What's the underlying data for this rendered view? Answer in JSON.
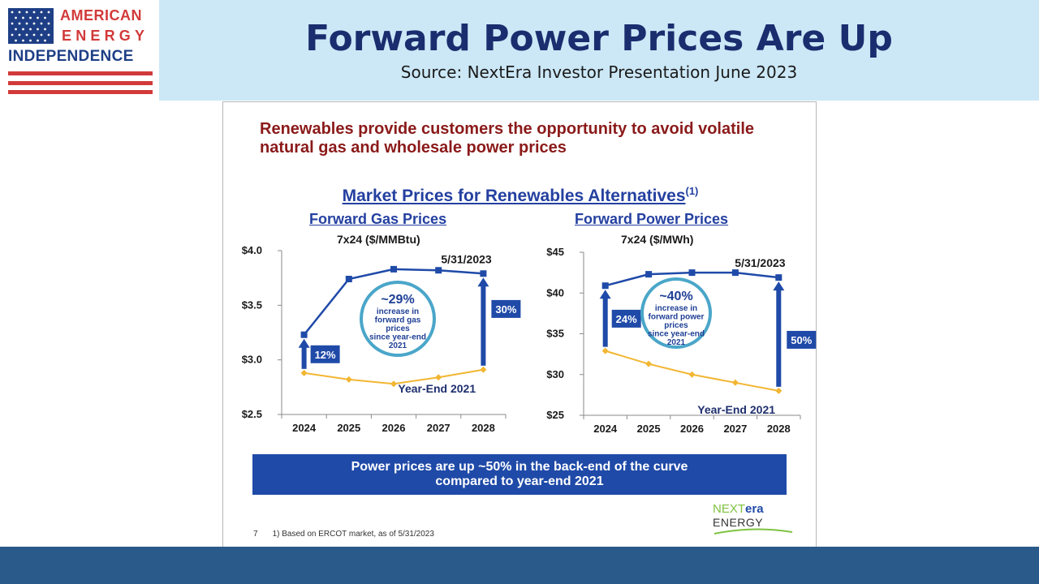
{
  "header": {
    "logo_line1": "AMERICAN",
    "logo_line2": "ENERGY",
    "logo_line3": "INDEPENDENCE",
    "title": "Forward Power Prices Are Up",
    "source": "Source: NextEra Investor Presentation June 2023"
  },
  "slide": {
    "headline": "Renewables provide customers the opportunity to avoid volatile natural gas and wholesale power prices",
    "section_title": "Market Prices for Renewables Alternatives",
    "section_superscript": "(1)",
    "banner": "Power prices are up ~50% in the back-end of the curve\ncompared to year-end 2021",
    "footnote_page": "7",
    "footnote_text": "1)   Based on ERCOT market, as of 5/31/2023",
    "logo_next": "NEXT",
    "logo_era": "era",
    "logo_energy": "ENERGY"
  },
  "colors": {
    "header_band": "#cce8f7",
    "title_navy": "#1a2d6e",
    "chart_blue": "#1f4aa8",
    "yearend_gold": "#f2b632",
    "headline_red": "#8b1a1a",
    "footer_band": "#2a5a8a"
  },
  "chart_data": [
    {
      "type": "line",
      "title": "Forward Gas Prices",
      "subtitle": "7x24 ($/MMBtu)",
      "x": [
        "2024",
        "2025",
        "2026",
        "2027",
        "2028"
      ],
      "ylim": [
        2.5,
        4.0
      ],
      "yticks": [
        2.5,
        3.0,
        3.5,
        4.0
      ],
      "ytick_labels": [
        "$2.5",
        "$3.0",
        "$3.5",
        "$4.0"
      ],
      "series": [
        {
          "name": "5/31/2023",
          "values": [
            3.23,
            3.74,
            3.83,
            3.82,
            3.79
          ],
          "color": "#1f4aa8"
        },
        {
          "name": "Year-End 2021",
          "values": [
            2.88,
            2.82,
            2.78,
            2.84,
            2.91
          ],
          "color": "#f2b632"
        }
      ],
      "change_labels": {
        "first": "12%",
        "last": "30%"
      },
      "bubble": {
        "big": "~29%",
        "small": [
          "increase in",
          "forward gas",
          "prices",
          "since year-end",
          "2021"
        ]
      },
      "grid": false
    },
    {
      "type": "line",
      "title": "Forward Power Prices",
      "subtitle": "7x24 ($/MWh)",
      "x": [
        "2024",
        "2025",
        "2026",
        "2027",
        "2028"
      ],
      "ylim": [
        25,
        45
      ],
      "yticks": [
        25,
        30,
        35,
        40,
        45
      ],
      "ytick_labels": [
        "$25",
        "$30",
        "$35",
        "$40",
        "$45"
      ],
      "series": [
        {
          "name": "5/31/2023",
          "values": [
            40.9,
            42.3,
            42.5,
            42.5,
            41.9
          ],
          "color": "#1f4aa8"
        },
        {
          "name": "Year-End 2021",
          "values": [
            32.9,
            31.3,
            30.0,
            29.0,
            28.0
          ],
          "color": "#f2b632"
        }
      ],
      "change_labels": {
        "first": "24%",
        "last": "50%"
      },
      "bubble": {
        "big": "~40%",
        "small": [
          "increase in",
          "forward power",
          "prices",
          "since year-end",
          "2021"
        ]
      },
      "grid": false
    }
  ]
}
